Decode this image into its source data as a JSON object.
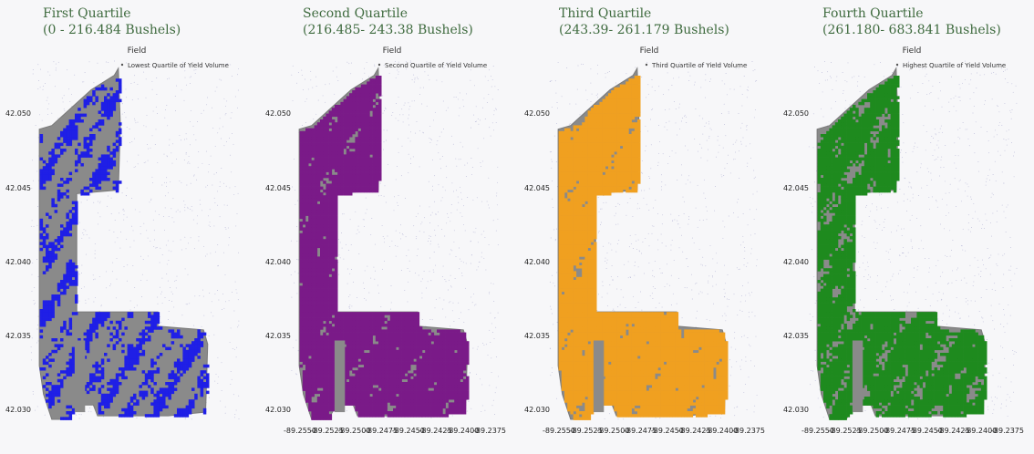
{
  "chart_data": [
    {
      "type": "scatter",
      "heading": [
        "First Quartile",
        "(0 - 216.484 Bushels)"
      ],
      "title": "Field",
      "legend": "Lowest Quartile of Yield Volume",
      "legend_position": "top-right",
      "color": "#1f1fe6",
      "show_xticks": false,
      "xticks": [],
      "yticks": [
        "42.050",
        "42.045",
        "42.040",
        "42.035",
        "42.030"
      ],
      "coverage": 0.42
    },
    {
      "type": "scatter",
      "heading": [
        "Second Quartile",
        "(216.485- 243.38 Bushels)"
      ],
      "title": "Field",
      "legend": "Second Quartile of Yield Volume",
      "legend_position": "top-right",
      "color": "#7a1a88",
      "show_xticks": true,
      "xticks": [
        "-89.2550",
        "-89.2525",
        "-89.2500",
        "-89.2475",
        "-89.2450",
        "-89.2425",
        "-89.2400",
        "-89.2375"
      ],
      "yticks": [
        "42.050",
        "42.045",
        "42.040",
        "42.035",
        "42.030"
      ],
      "coverage": 0.78
    },
    {
      "type": "scatter",
      "heading": [
        "Third Quartile",
        "(243.39- 261.179 Bushels)"
      ],
      "title": "Field",
      "legend": "Third Quartile of Yield Volume",
      "legend_position": "top-right",
      "color": "#f0a020",
      "show_xticks": true,
      "xticks": [
        "-89.2550",
        "-89.2525",
        "-89.2500",
        "-89.2475",
        "-89.2450",
        "-89.2425",
        "-89.2400",
        "-89.2375"
      ],
      "yticks": [
        "42.050",
        "42.045",
        "42.040",
        "42.035",
        "42.030"
      ],
      "coverage": 0.8
    },
    {
      "type": "scatter",
      "heading": [
        "Fourth Quartile",
        "(261.180- 683.841 Bushels)"
      ],
      "title": "Field",
      "legend": "Highest Quartile of Yield Volume",
      "legend_position": "top-right",
      "color": "#1e8a1e",
      "show_xticks": true,
      "xticks": [
        "-89.2550",
        "-89.2525",
        "-89.2500",
        "-89.2475",
        "-89.2450",
        "-89.2425",
        "-89.2400",
        "-89.2375"
      ],
      "yticks": [
        "42.050",
        "42.045",
        "42.040",
        "42.035",
        "42.030"
      ],
      "coverage": 0.68
    }
  ]
}
